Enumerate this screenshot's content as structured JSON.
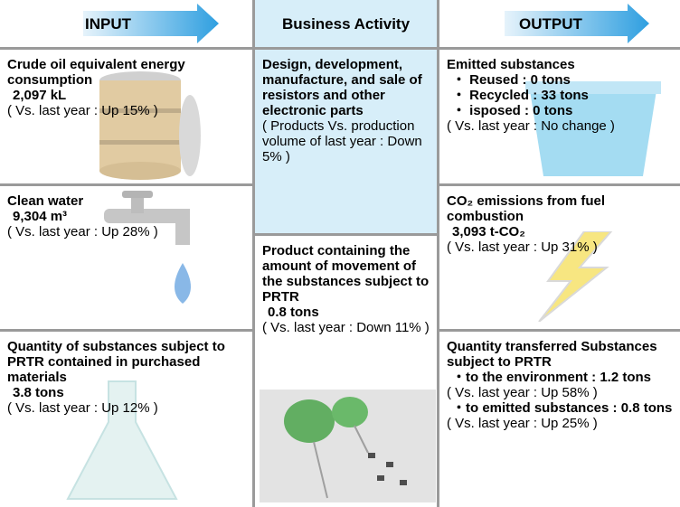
{
  "header": {
    "input": "INPUT",
    "business": "Business Activity",
    "output": "OUTPUT"
  },
  "input": [
    {
      "title": "Crude oil equivalent energy consumption",
      "value": "2,097 kL",
      "note": "( Vs. last year : Up 15% )"
    },
    {
      "title": "Clean water",
      "value": "9,304 m³",
      "note": "( Vs. last year : Up 28% )"
    },
    {
      "title": "Quantity of substances subject to PRTR contained in purchased materials",
      "value": "3.8 tons",
      "note": "( Vs. last year : Up 12% )"
    }
  ],
  "business": [
    {
      "title": "Design, development, manufacture, and sale of resistors and other electronic parts",
      "note": "( Products Vs. production volume of last year : Down 5% )"
    },
    {
      "title": "Product containing the amount of movement of the substances subject to PRTR",
      "value": "0.8 tons",
      "note": "( Vs. last year : Down 11% )"
    }
  ],
  "output": [
    {
      "title": "Emitted substances",
      "items": [
        "・ Reused : 0 tons",
        "・ Recycled : 33 tons",
        "・ isposed : 0 tons"
      ],
      "note": "( Vs. last year : No change )"
    },
    {
      "title": "CO₂ emissions from fuel combustion",
      "value": "3,093 t-CO₂",
      "note": "( Vs. last year : Up 31% )"
    },
    {
      "title": "Quantity transferred Substances subject to PRTR",
      "items": [
        {
          "label": "・to the environment : 1.2 tons",
          "note": "( Vs. last year : Up 58% )"
        },
        {
          "label": "・to emitted substances : 0.8 tons",
          "note": "( Vs. last year : Up 25% )"
        }
      ]
    }
  ]
}
